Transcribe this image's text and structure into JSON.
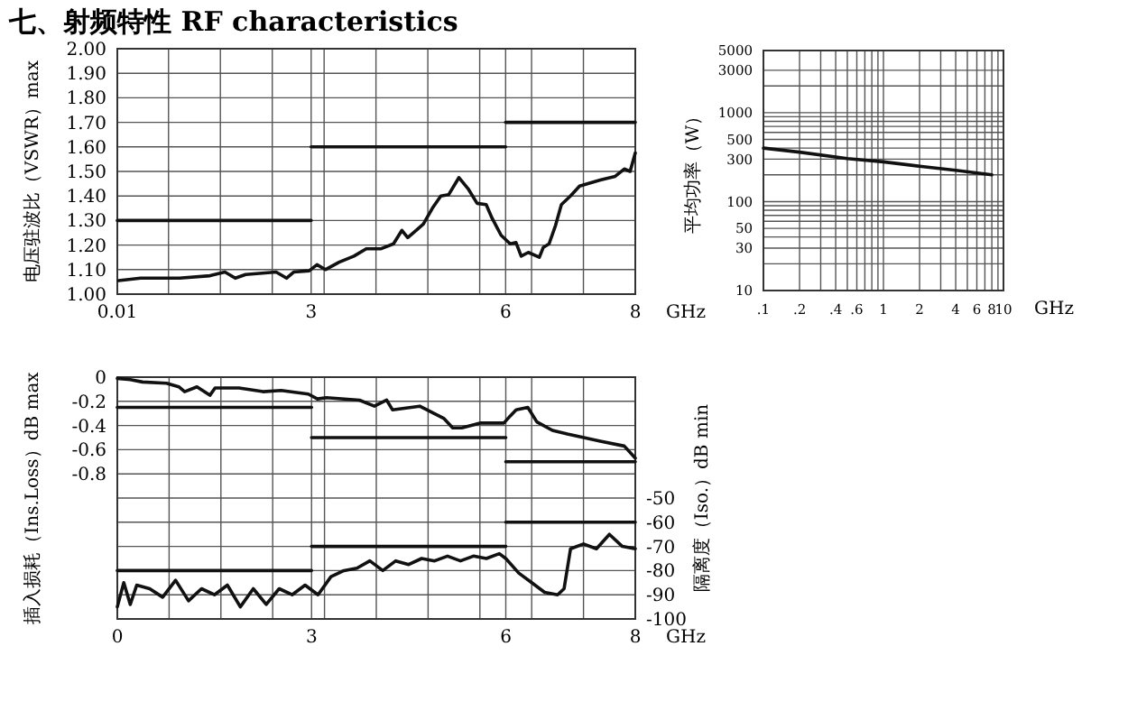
{
  "chart_data": [
    {
      "type": "line",
      "title": "七、射频特性 RF characteristics",
      "ylabel": "电压驻波比（VSWR）max",
      "xlabel": "GHz",
      "grid": true,
      "xlim": [
        0.01,
        8
      ],
      "xticks": [
        0.01,
        {
          "value": 0.8,
          "label": null
        },
        {
          "value": 1.6,
          "label": null
        },
        {
          "value": 2.4,
          "label": null
        },
        3,
        {
          "value": 3.2,
          "label": null
        },
        {
          "value": 4,
          "label": null
        },
        {
          "value": 4.8,
          "label": null
        },
        {
          "value": 5.6,
          "label": null
        },
        6,
        {
          "value": 6.4,
          "label": null
        },
        {
          "value": 7.2,
          "label": null
        },
        8
      ],
      "ylim": [
        1,
        2
      ],
      "yticks": [
        {
          "value": 1,
          "label": "1.00"
        },
        {
          "value": 1.1,
          "label": "1.10"
        },
        {
          "value": 1.2,
          "label": "1.20"
        },
        {
          "value": 1.3,
          "label": "1.30"
        },
        {
          "value": 1.4,
          "label": "1.40"
        },
        {
          "value": 1.5,
          "label": "1.50"
        },
        {
          "value": 1.6,
          "label": "1.60"
        },
        {
          "value": 1.7,
          "label": "1.70"
        },
        {
          "value": 1.8,
          "label": "1.80"
        },
        {
          "value": 1.9,
          "label": "1.90"
        },
        {
          "value": 2,
          "label": "2.00"
        }
      ],
      "series": [
        {
          "color": "#111111",
          "x": [
            0.03,
            0.37,
            0.97,
            1.44,
            1.67,
            1.83,
            1.99,
            2.46,
            2.62,
            2.73,
            2.97,
            3.09,
            3.22,
            3.43,
            3.66,
            3.85,
            4.08,
            4.27,
            4.4,
            4.49,
            4.73,
            4.87,
            5.0,
            5.12,
            5.28,
            5.42,
            5.56,
            5.7,
            5.79,
            5.93,
            6.07,
            6.16,
            6.24,
            6.35,
            6.52,
            6.58,
            6.67,
            6.77,
            6.86,
            7.0,
            7.14,
            7.46,
            7.69,
            7.83,
            7.92,
            8.0
          ],
          "values": [
            1.055,
            1.065,
            1.065,
            1.075,
            1.09,
            1.065,
            1.08,
            1.09,
            1.065,
            1.09,
            1.095,
            1.12,
            1.1,
            1.13,
            1.155,
            1.185,
            1.185,
            1.205,
            1.26,
            1.23,
            1.285,
            1.35,
            1.4,
            1.405,
            1.475,
            1.43,
            1.37,
            1.365,
            1.31,
            1.24,
            1.205,
            1.21,
            1.155,
            1.17,
            1.15,
            1.19,
            1.205,
            1.28,
            1.365,
            1.4,
            1.44,
            1.465,
            1.48,
            1.51,
            1.5,
            1.575
          ]
        },
        {
          "color": "#111111",
          "x": [
            0.01,
            3
          ],
          "values": [
            1.3,
            1.3
          ]
        },
        {
          "color": "#111111",
          "x": [
            3,
            6
          ],
          "values": [
            1.6,
            1.6
          ]
        },
        {
          "color": "#111111",
          "x": [
            6,
            8
          ],
          "values": [
            1.7,
            1.7
          ]
        }
      ]
    },
    {
      "type": "line",
      "ylabel": "平均功率（W）",
      "xlabel": "GHz",
      "grid": true,
      "log": "xy",
      "xlim": [
        0.1,
        10
      ],
      "xticks": [
        {
          "value": 0.1,
          "label": ".1"
        },
        {
          "value": 0.2,
          "label": ".2"
        },
        {
          "value": 0.3,
          "label": null
        },
        {
          "value": 0.4,
          "label": ".4"
        },
        {
          "value": 0.5,
          "label": null
        },
        {
          "value": 0.6,
          "label": ".6"
        },
        {
          "value": 0.7,
          "label": null
        },
        {
          "value": 0.8,
          "label": null
        },
        {
          "value": 0.9,
          "label": null
        },
        1,
        2,
        {
          "value": 3,
          "label": null
        },
        4,
        {
          "value": 5,
          "label": null
        },
        6,
        {
          "value": 7,
          "label": null
        },
        8,
        {
          "value": 9,
          "label": null
        },
        10
      ],
      "ylim": [
        10,
        5000
      ],
      "yticks": [
        10,
        {
          "value": 20,
          "label": null
        },
        30,
        {
          "value": 40,
          "label": null
        },
        50,
        {
          "value": 60,
          "label": null
        },
        {
          "value": 70,
          "label": null
        },
        {
          "value": 80,
          "label": null
        },
        {
          "value": 90,
          "label": null
        },
        100,
        {
          "value": 200,
          "label": null
        },
        300,
        {
          "value": 400,
          "label": null
        },
        500,
        {
          "value": 600,
          "label": null
        },
        {
          "value": 700,
          "label": null
        },
        {
          "value": 800,
          "label": null
        },
        {
          "value": 900,
          "label": null
        },
        1000,
        {
          "value": 2000,
          "label": null
        },
        3000,
        5000
      ],
      "series": [
        {
          "color": "#111111",
          "x": [
            0.1,
            0.2,
            0.5,
            1,
            2,
            4,
            8
          ],
          "values": [
            400,
            360,
            305,
            280,
            250,
            225,
            200
          ]
        }
      ]
    },
    {
      "type": "line",
      "ylabel": "插入损耗（Ins.Loss）dB max",
      "y2label": "隔离度（Iso.）dB min",
      "xlabel": "GHz",
      "grid": true,
      "xlim": [
        0,
        8
      ],
      "xticks": [
        0,
        {
          "value": 0.8,
          "label": null
        },
        {
          "value": 1.6,
          "label": null
        },
        {
          "value": 2.4,
          "label": null
        },
        3,
        {
          "value": 3.2,
          "label": null
        },
        {
          "value": 4,
          "label": null
        },
        {
          "value": 4.8,
          "label": null
        },
        {
          "value": 5.6,
          "label": null
        },
        6,
        {
          "value": 6.4,
          "label": null
        },
        {
          "value": 7.2,
          "label": null
        },
        8
      ],
      "ylim": [
        -2,
        0
      ],
      "yticks": [
        0,
        -0.2,
        -0.4,
        -0.6,
        -0.8
      ],
      "y2lim": [
        -100,
        0
      ],
      "y2ticks": [
        -50,
        -60,
        -70,
        -80,
        -90,
        -100
      ],
      "series": [
        {
          "color": "#111111",
          "x": [
            0,
            0.2,
            0.39,
            0.76,
            0.95,
            1.04,
            1.23,
            1.43,
            1.51,
            1.88,
            2.25,
            2.53,
            2.95,
            3.09,
            3.23,
            3.74,
            3.97,
            4.16,
            4.25,
            4.67,
            5.04,
            5.18,
            5.32,
            5.6,
            5.97,
            6.07,
            6.16,
            6.34,
            6.48,
            6.72,
            6.95,
            7.46,
            7.83,
            8.0
          ],
          "values": [
            -0.01,
            -0.02,
            -0.04,
            -0.05,
            -0.08,
            -0.12,
            -0.08,
            -0.15,
            -0.09,
            -0.09,
            -0.12,
            -0.11,
            -0.14,
            -0.18,
            -0.17,
            -0.19,
            -0.24,
            -0.19,
            -0.27,
            -0.24,
            -0.34,
            -0.42,
            -0.42,
            -0.38,
            -0.38,
            -0.32,
            -0.27,
            -0.25,
            -0.37,
            -0.44,
            -0.47,
            -0.53,
            -0.57,
            -0.67
          ]
        },
        {
          "color": "#111111",
          "x": [
            0,
            3
          ],
          "values": [
            -0.25,
            -0.25
          ]
        },
        {
          "color": "#111111",
          "x": [
            3,
            6
          ],
          "values": [
            -0.5,
            -0.5
          ]
        },
        {
          "color": "#111111",
          "x": [
            6,
            8
          ],
          "values": [
            -0.7,
            -0.7
          ]
        },
        {
          "color": "#111111",
          "axis": "y2",
          "x": [
            0,
            0.1,
            0.2,
            0.3,
            0.5,
            0.7,
            0.9,
            1.1,
            1.3,
            1.5,
            1.7,
            1.9,
            2.1,
            2.3,
            2.5,
            2.7,
            2.9,
            3.1,
            3.3,
            3.5,
            3.7,
            3.9,
            4.1,
            4.3,
            4.5,
            4.7,
            4.9,
            5.1,
            5.3,
            5.5,
            5.7,
            5.9,
            6.0,
            6.2,
            6.4,
            6.6,
            6.8,
            6.9,
            7.0,
            7.2,
            7.4,
            7.6,
            7.8,
            8.0
          ],
          "values": [
            -95,
            -85,
            -94,
            -86,
            -87.5,
            -91,
            -84,
            -92.5,
            -87.5,
            -90,
            -86,
            -95,
            -87.5,
            -94,
            -87.5,
            -90,
            -86,
            -90,
            -82.5,
            -80,
            -79,
            -76,
            -80,
            -76,
            -77.5,
            -75,
            -76,
            -74,
            -76,
            -74,
            -75,
            -73,
            -75,
            -81,
            -85,
            -89,
            -90,
            -87.5,
            -71,
            -69,
            -71,
            -65,
            -70,
            -71
          ]
        },
        {
          "color": "#111111",
          "axis": "y2",
          "x": [
            0,
            3
          ],
          "values": [
            -80,
            -80
          ]
        },
        {
          "color": "#111111",
          "axis": "y2",
          "x": [
            3,
            6
          ],
          "values": [
            -70,
            -70
          ]
        },
        {
          "color": "#111111",
          "axis": "y2",
          "x": [
            6,
            8
          ],
          "values": [
            -60,
            -60
          ]
        }
      ]
    }
  ]
}
